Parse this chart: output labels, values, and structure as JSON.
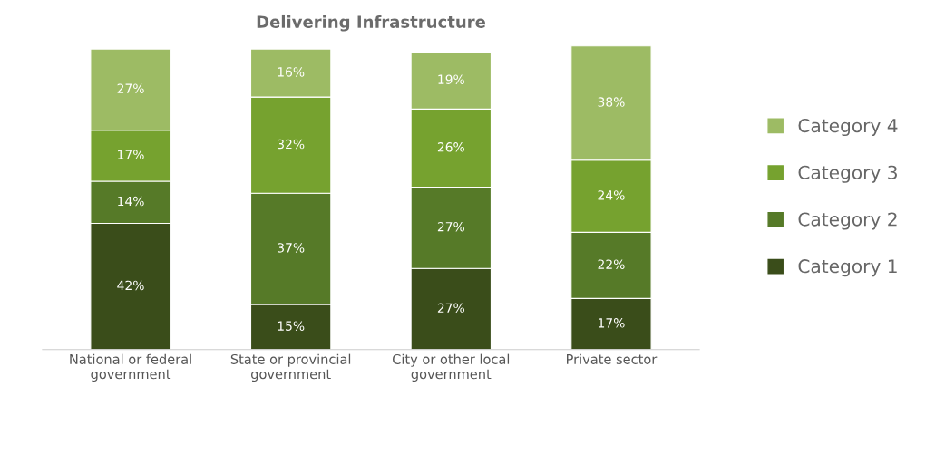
{
  "chart_data": {
    "type": "bar",
    "title": "Delivering Infrastructure",
    "stacked": true,
    "legend": "right",
    "grid": false,
    "tick_labels": "x",
    "categories": [
      "National or federal\ngovernment",
      "State or provincial\ngovernment",
      "City or other local\ngovernment",
      "Private sector"
    ],
    "series": [
      {
        "name": "Category 1",
        "color": "#3a4d1a",
        "values": [
          42,
          15,
          27,
          17
        ],
        "value_labels": [
          "42%",
          "15%",
          "27%",
          "17%"
        ]
      },
      {
        "name": "Category 2",
        "color": "#567a28",
        "values": [
          14,
          37,
          27,
          22
        ],
        "value_labels": [
          "14%",
          "37%",
          "27%",
          "22%"
        ]
      },
      {
        "name": "Category 3",
        "color": "#76a22f",
        "values": [
          17,
          32,
          26,
          24
        ],
        "value_labels": [
          "17%",
          "32%",
          "26%",
          "24%"
        ]
      },
      {
        "name": "Category 4",
        "color": "#9dbb64",
        "values": [
          27,
          16,
          19,
          38
        ],
        "value_labels": [
          "27%",
          "16%",
          "19%",
          "38%"
        ]
      }
    ]
  }
}
